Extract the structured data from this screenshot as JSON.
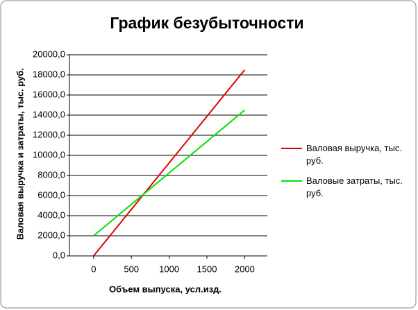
{
  "chart_data": {
    "type": "line",
    "title": "График безубыточности",
    "x_label": "Объем выпуска, усл.изд.",
    "y_label": "Валовая выручка и затраты, тыс. руб.",
    "x": [
      0,
      2000
    ],
    "series": [
      {
        "name": "Валовая выручка, тыс. руб.",
        "color": "#e00000",
        "values": [
          0,
          18500
        ]
      },
      {
        "name": "Валовые затраты, тыс. руб.",
        "color": "#00e000",
        "values": [
          2000,
          14500
        ]
      }
    ],
    "xlim": [
      -320,
      2300
    ],
    "xticks": [
      0,
      500,
      1000,
      1500,
      2000
    ],
    "ylim": [
      0,
      20000
    ],
    "yticks": [
      {
        "value": 0,
        "label": "0,0"
      },
      {
        "value": 2000,
        "label": "2000,0"
      },
      {
        "value": 4000,
        "label": "4000,0"
      },
      {
        "value": 6000,
        "label": "6000,0"
      },
      {
        "value": 8000,
        "label": "8000,0"
      },
      {
        "value": 10000,
        "label": "10000,0"
      },
      {
        "value": 12000,
        "label": "12000,0"
      },
      {
        "value": 14000,
        "label": "14000,0"
      },
      {
        "value": 16000,
        "label": "16000,0"
      },
      {
        "value": 18000,
        "label": "18000,0"
      },
      {
        "value": 20000,
        "label": "20000,0"
      }
    ],
    "grid": true,
    "legend": "right"
  }
}
